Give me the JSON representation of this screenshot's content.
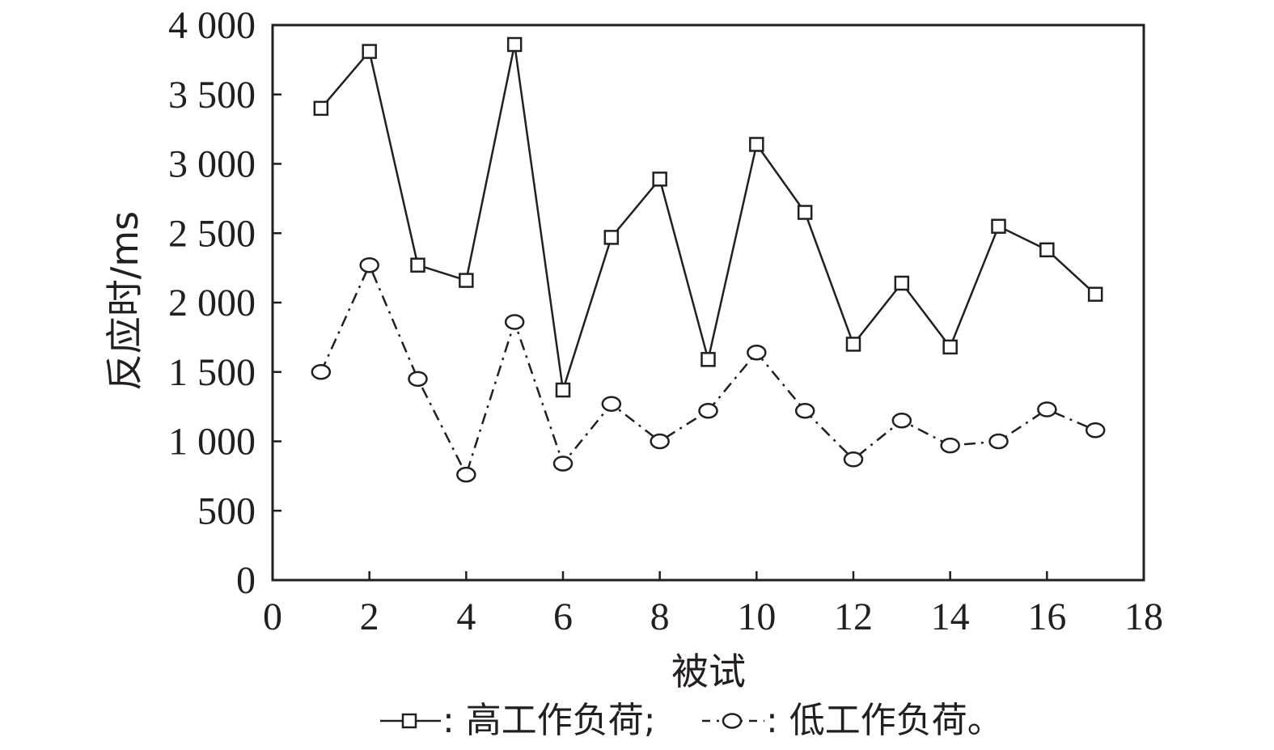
{
  "chart_data": {
    "type": "line",
    "xlabel": "被试",
    "ylabel": "反应时/ms",
    "xlim": [
      0,
      18
    ],
    "ylim": [
      0,
      4000
    ],
    "xticks": [
      0,
      2,
      4,
      6,
      8,
      10,
      12,
      14,
      16,
      18
    ],
    "yticks": [
      0,
      500,
      1000,
      1500,
      2000,
      2500,
      3000,
      3500,
      4000
    ],
    "xtick_labels": [
      "0",
      "2",
      "4",
      "6",
      "8",
      "10",
      "12",
      "14",
      "16",
      "18"
    ],
    "ytick_labels": [
      "0",
      "500",
      "1 000",
      "1 500",
      "2 000",
      "2 500",
      "3 000",
      "3 500",
      "4 000"
    ],
    "grid": false,
    "legend_position": "bottom",
    "x": [
      1,
      2,
      3,
      4,
      5,
      6,
      7,
      8,
      9,
      10,
      11,
      12,
      13,
      14,
      15,
      16,
      17
    ],
    "series": [
      {
        "name": "高工作负荷",
        "legend_label": ": 高工作负荷;",
        "marker": "square",
        "line_style": "solid",
        "values": [
          3400,
          3810,
          2270,
          2160,
          3860,
          1370,
          2470,
          2890,
          1590,
          3140,
          2650,
          1700,
          2140,
          1680,
          2550,
          2380,
          2060
        ]
      },
      {
        "name": "低工作负荷",
        "legend_label": ": 低工作负荷。",
        "marker": "circle",
        "line_style": "dash-dot",
        "values": [
          1500,
          2270,
          1450,
          760,
          1860,
          840,
          1270,
          1000,
          1220,
          1640,
          1220,
          870,
          1150,
          970,
          1000,
          1230,
          1080
        ]
      }
    ],
    "colors": {
      "ink": "#231f20",
      "background": "#ffffff"
    }
  }
}
